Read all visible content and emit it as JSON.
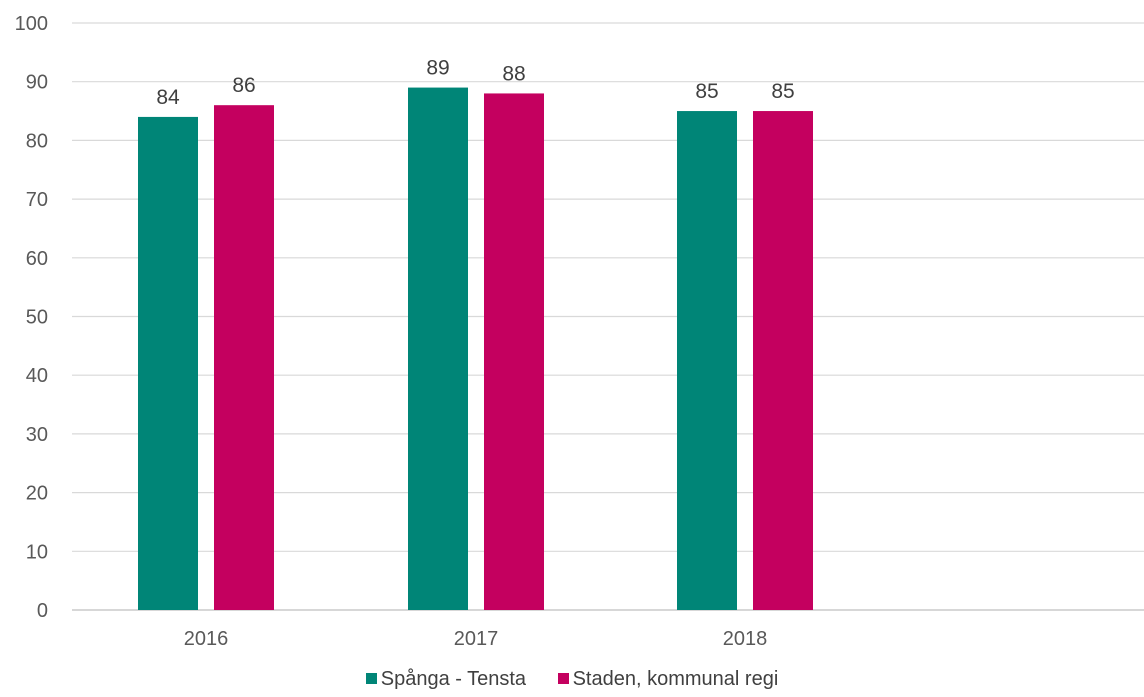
{
  "chart_data": {
    "type": "bar",
    "categories": [
      "2016",
      "2017",
      "2018"
    ],
    "series": [
      {
        "name": "Spånga - Tensta",
        "values": [
          84,
          89,
          85
        ],
        "color": "#008577"
      },
      {
        "name": "Staden, kommunal regi",
        "values": [
          86,
          88,
          85
        ],
        "color": "#C4005F"
      }
    ],
    "y_ticks": [
      "0",
      "10",
      "20",
      "30",
      "40",
      "50",
      "60",
      "70",
      "80",
      "90",
      "100"
    ],
    "ylim": [
      0,
      100
    ],
    "grid": true,
    "legend_position": "bottom",
    "data_labels": true
  }
}
